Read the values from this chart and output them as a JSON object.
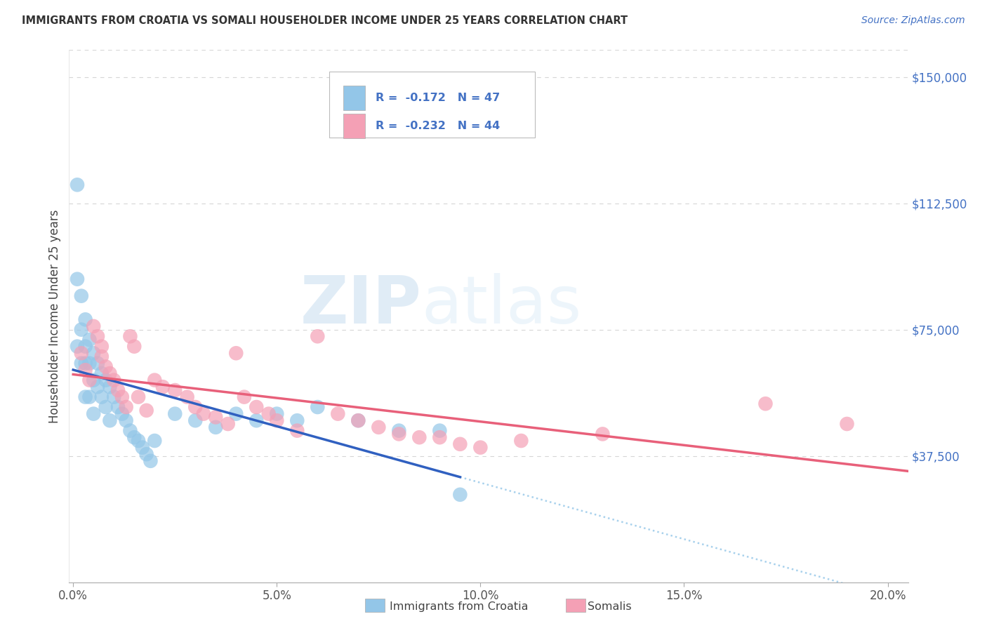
{
  "title": "IMMIGRANTS FROM CROATIA VS SOMALI HOUSEHOLDER INCOME UNDER 25 YEARS CORRELATION CHART",
  "source": "Source: ZipAtlas.com",
  "ylabel": "Householder Income Under 25 years",
  "xlabel_ticks": [
    "0.0%",
    "5.0%",
    "10.0%",
    "15.0%",
    "20.0%"
  ],
  "xlabel_vals": [
    0.0,
    0.05,
    0.1,
    0.15,
    0.2
  ],
  "ylabel_ticks": [
    "$37,500",
    "$75,000",
    "$112,500",
    "$150,000"
  ],
  "ylabel_vals": [
    37500,
    75000,
    112500,
    150000
  ],
  "xlim": [
    -0.001,
    0.205
  ],
  "ylim": [
    0,
    158000
  ],
  "croatia_color": "#93c6e8",
  "somali_color": "#f4a0b5",
  "croatia_line_color": "#3060c0",
  "somali_line_color": "#e8607a",
  "dashed_line_color": "#93c6e8",
  "croatia_R": -0.172,
  "croatia_N": 47,
  "somali_R": -0.232,
  "somali_N": 44,
  "watermark_ZIP": "ZIP",
  "watermark_atlas": "atlas",
  "background_color": "#ffffff",
  "grid_color": "#cccccc",
  "legend_box_color": "#dddddd",
  "right_label_color": "#4472c4",
  "croatia_x": [
    0.001,
    0.001,
    0.001,
    0.002,
    0.002,
    0.002,
    0.003,
    0.003,
    0.003,
    0.003,
    0.004,
    0.004,
    0.004,
    0.005,
    0.005,
    0.005,
    0.006,
    0.006,
    0.007,
    0.007,
    0.008,
    0.008,
    0.009,
    0.009,
    0.01,
    0.011,
    0.012,
    0.013,
    0.014,
    0.015,
    0.016,
    0.017,
    0.018,
    0.019,
    0.02,
    0.025,
    0.03,
    0.035,
    0.04,
    0.045,
    0.05,
    0.055,
    0.06,
    0.07,
    0.08,
    0.09,
    0.095
  ],
  "croatia_y": [
    118000,
    90000,
    70000,
    85000,
    75000,
    65000,
    78000,
    70000,
    65000,
    55000,
    72000,
    65000,
    55000,
    68000,
    60000,
    50000,
    65000,
    58000,
    62000,
    55000,
    60000,
    52000,
    58000,
    48000,
    55000,
    52000,
    50000,
    48000,
    45000,
    43000,
    42000,
    40000,
    38000,
    36000,
    42000,
    50000,
    48000,
    46000,
    50000,
    48000,
    50000,
    48000,
    52000,
    48000,
    45000,
    45000,
    26000
  ],
  "somali_x": [
    0.002,
    0.003,
    0.004,
    0.005,
    0.006,
    0.007,
    0.007,
    0.008,
    0.009,
    0.01,
    0.011,
    0.012,
    0.013,
    0.014,
    0.015,
    0.016,
    0.018,
    0.02,
    0.022,
    0.025,
    0.028,
    0.03,
    0.032,
    0.035,
    0.038,
    0.04,
    0.042,
    0.045,
    0.048,
    0.05,
    0.055,
    0.06,
    0.065,
    0.07,
    0.075,
    0.08,
    0.085,
    0.09,
    0.095,
    0.1,
    0.11,
    0.13,
    0.17,
    0.19
  ],
  "somali_y": [
    68000,
    63000,
    60000,
    76000,
    73000,
    70000,
    67000,
    64000,
    62000,
    60000,
    57000,
    55000,
    52000,
    73000,
    70000,
    55000,
    51000,
    60000,
    58000,
    57000,
    55000,
    52000,
    50000,
    49000,
    47000,
    68000,
    55000,
    52000,
    50000,
    48000,
    45000,
    73000,
    50000,
    48000,
    46000,
    44000,
    43000,
    43000,
    41000,
    40000,
    42000,
    44000,
    53000,
    47000
  ]
}
